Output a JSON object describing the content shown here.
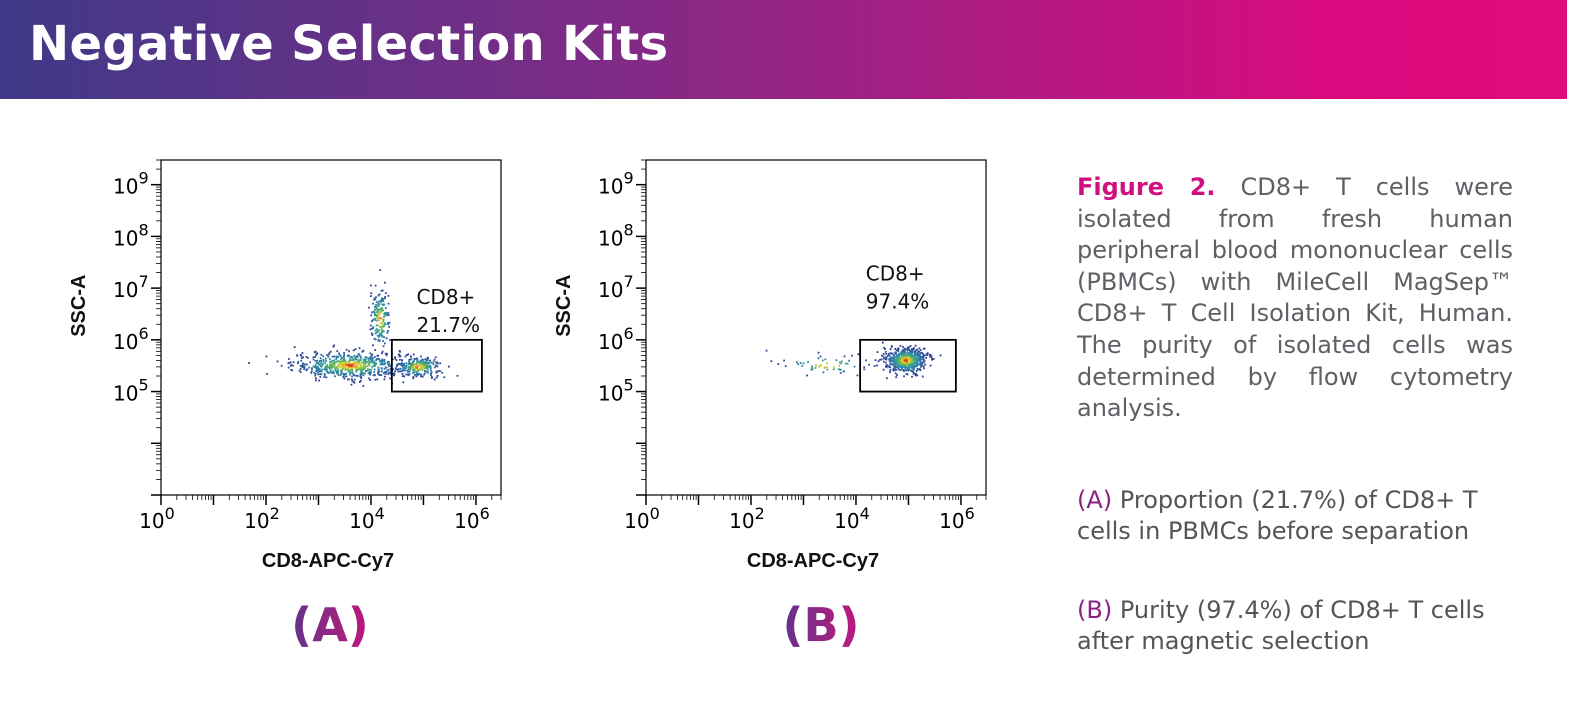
{
  "header": {
    "title": "Negative Selection Kits",
    "colors": {
      "start": "#3f3988",
      "end": "#e10a7c"
    }
  },
  "chart_data": [
    {
      "type": "scatter",
      "panel_label": "(A)",
      "xlabel": "CD8-APC-Cy7",
      "ylabel": "SSC-A",
      "x_scale": "log",
      "y_scale": "log",
      "xlim": [
        1,
        3000000
      ],
      "ylim": [
        1000,
        3000000000
      ],
      "x_ticks": [
        {
          "value": 1,
          "base": "10",
          "exp": "0"
        },
        {
          "value": 100,
          "base": "10",
          "exp": "2"
        },
        {
          "value": 10000,
          "base": "10",
          "exp": "4"
        },
        {
          "value": 1000000,
          "base": "10",
          "exp": "6"
        }
      ],
      "y_ticks": [
        {
          "value": 100000,
          "base": "10",
          "exp": "5"
        },
        {
          "value": 1000000,
          "base": "10",
          "exp": "6"
        },
        {
          "value": 10000000,
          "base": "10",
          "exp": "7"
        },
        {
          "value": 100000000,
          "base": "10",
          "exp": "8"
        },
        {
          "value": 1000000000,
          "base": "10",
          "exp": "9"
        }
      ],
      "gate": {
        "name": "CD8+",
        "percent": "21.7%",
        "x_range": [
          25000,
          1300000
        ],
        "y_range": [
          100000,
          1000000
        ]
      },
      "populations": [
        {
          "x": 4000,
          "y": 320000,
          "spread_x": 0.55,
          "spread_y": 0.13,
          "count": 620
        },
        {
          "x": 15000,
          "y": 2500000,
          "spread_x": 0.1,
          "spread_y": 0.3,
          "count": 170
        },
        {
          "x": 80000,
          "y": 300000,
          "spread_x": 0.22,
          "spread_y": 0.1,
          "count": 230
        }
      ]
    },
    {
      "type": "scatter",
      "panel_label": "(B)",
      "xlabel": "CD8-APC-Cy7",
      "ylabel": "SSC-A",
      "x_scale": "log",
      "y_scale": "log",
      "xlim": [
        1,
        3000000
      ],
      "ylim": [
        1000,
        3000000000
      ],
      "x_ticks": [
        {
          "value": 1,
          "base": "10",
          "exp": "0"
        },
        {
          "value": 100,
          "base": "10",
          "exp": "2"
        },
        {
          "value": 10000,
          "base": "10",
          "exp": "4"
        },
        {
          "value": 1000000,
          "base": "10",
          "exp": "6"
        }
      ],
      "y_ticks": [
        {
          "value": 100000,
          "base": "10",
          "exp": "5"
        },
        {
          "value": 1000000,
          "base": "10",
          "exp": "6"
        },
        {
          "value": 10000000,
          "base": "10",
          "exp": "7"
        },
        {
          "value": 100000000,
          "base": "10",
          "exp": "8"
        },
        {
          "value": 1000000000,
          "base": "10",
          "exp": "9"
        }
      ],
      "gate": {
        "name": "CD8+",
        "percent": "97.4%",
        "x_range": [
          12000,
          800000
        ],
        "y_range": [
          100000,
          1000000
        ]
      },
      "populations": [
        {
          "x": 90000,
          "y": 400000,
          "spread_x": 0.2,
          "spread_y": 0.12,
          "count": 560
        },
        {
          "x": 3000,
          "y": 320000,
          "spread_x": 0.45,
          "spread_y": 0.1,
          "count": 60
        }
      ]
    }
  ],
  "caption": {
    "figure_label": "Figure 2.",
    "text": "CD8+ T cells were isolated from fresh human peripheral blood mononuclear cells (PBMCs) with MileCell MagSep™ CD8+ T Cell Isolation Kit, Human. The purity of isolated cells was determined by flow cytometry analysis."
  },
  "descriptions": [
    {
      "tag": "(A)",
      "text": "Proportion (21.7%) of CD8+ T cells in PBMCs before separation"
    },
    {
      "tag": "(B)",
      "text": "Purity (97.4%) of CD8+ T cells after magnetic selection"
    }
  ]
}
